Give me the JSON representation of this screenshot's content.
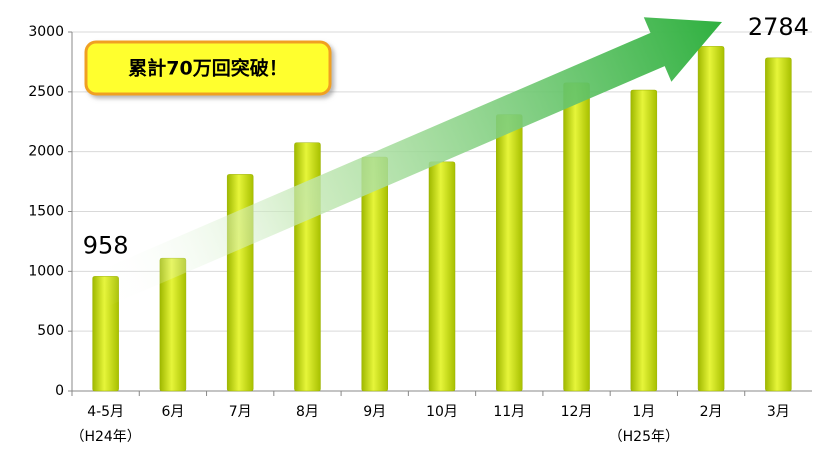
{
  "chart_data": {
    "type": "bar",
    "categories": [
      "4-5月",
      "6月",
      "7月",
      "8月",
      "9月",
      "10月",
      "11月",
      "12月",
      "1月",
      "2月",
      "3月"
    ],
    "category_sublabels": [
      "（H24年）",
      null,
      null,
      null,
      null,
      null,
      null,
      null,
      "（H25年）",
      null,
      null
    ],
    "values": [
      958,
      1110,
      1810,
      2075,
      1955,
      1915,
      2310,
      2575,
      2515,
      2880,
      2784
    ],
    "value_labels": [
      "958",
      null,
      null,
      null,
      null,
      null,
      null,
      null,
      null,
      null,
      "2784"
    ],
    "color": "#c4dc00",
    "annotation": "累計70万回突破！",
    "ylim": [
      0,
      3000
    ],
    "yticks": [
      0,
      500,
      1000,
      1500,
      2000,
      2500,
      3000
    ],
    "grid": true
  }
}
